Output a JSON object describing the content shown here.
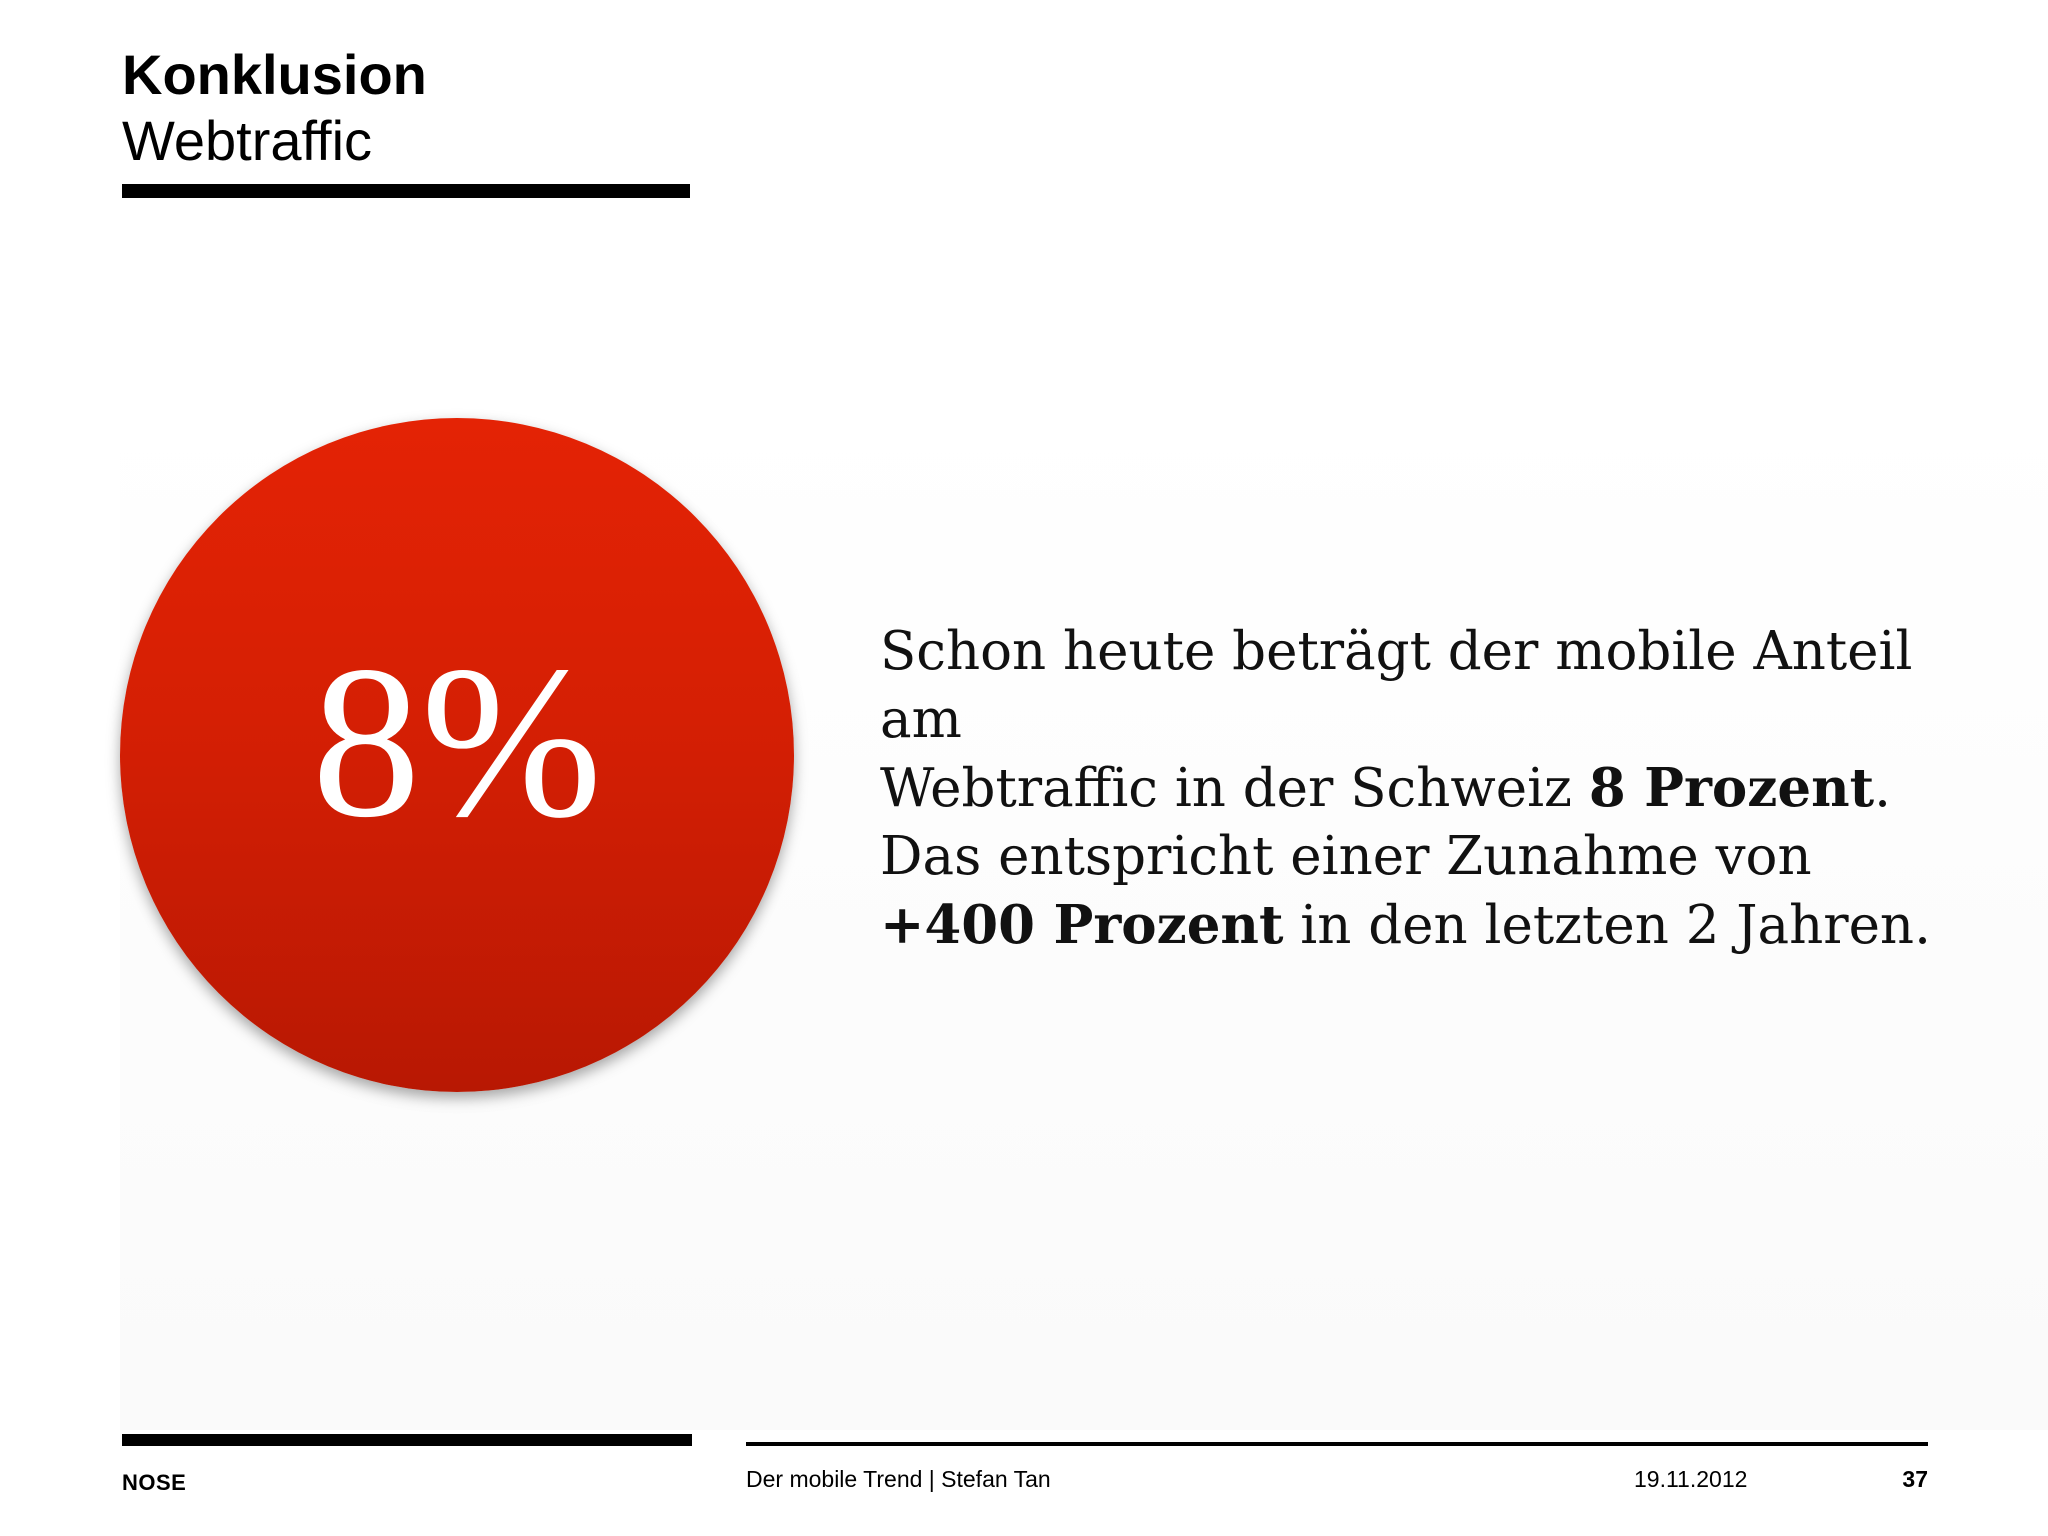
{
  "header": {
    "title": "Konklusion",
    "subtitle": "Webtraffic"
  },
  "highlight": {
    "value": "8%",
    "color": "#d51f04"
  },
  "statement": {
    "line1": "Schon heute beträgt der mobile Anteil am",
    "line2_pre": "Webtraffic in der Schweiz ",
    "line2_bold": "8 Prozent",
    "line2_post": ".",
    "line3": "Das entspricht einer Zunahme von",
    "line4_bold": "+400 Prozent",
    "line4_post": " in den letzten 2 Jahren."
  },
  "footer": {
    "logo": "NOSE",
    "presentation": "Der mobile Trend | Stefan Tan",
    "date": "19.11.2012",
    "page": "37"
  }
}
